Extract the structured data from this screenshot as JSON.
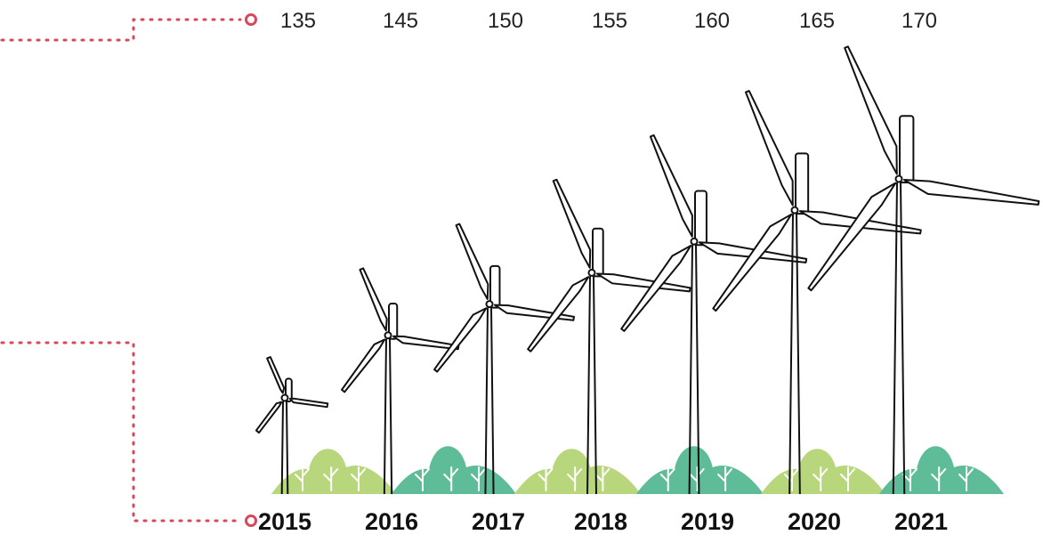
{
  "chart_data": {
    "type": "turbine",
    "categories": [
      "2015",
      "2016",
      "2017",
      "2018",
      "2019",
      "2020",
      "2021"
    ],
    "values": [
      135,
      145,
      150,
      155,
      160,
      165,
      170
    ],
    "color": "#d9475a"
  }
}
